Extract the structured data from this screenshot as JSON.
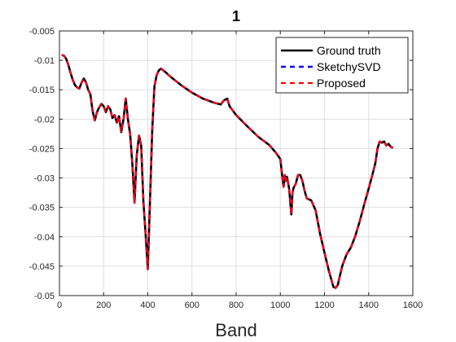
{
  "chart_data": {
    "type": "line",
    "title": "1",
    "xlabel": "Band",
    "ylabel": "",
    "xlim": [
      0,
      1600
    ],
    "ylim": [
      -0.05,
      -0.005
    ],
    "xticks": [
      0,
      200,
      400,
      600,
      800,
      1000,
      1200,
      1400,
      1600
    ],
    "yticks": [
      -0.005,
      -0.01,
      -0.015,
      -0.02,
      -0.025,
      -0.03,
      -0.035,
      -0.04,
      -0.045,
      -0.05
    ],
    "xtick_labels": [
      "0",
      "200",
      "400",
      "600",
      "800",
      "1000",
      "1200",
      "1400",
      "1600"
    ],
    "ytick_labels": [
      "-0.005",
      "-0.01",
      "-0.015",
      "-0.02",
      "-0.025",
      "-0.03",
      "-0.035",
      "-0.04",
      "-0.045",
      "-0.05"
    ],
    "grid": true,
    "legend_position": "top-right",
    "x": [
      10,
      20,
      30,
      40,
      50,
      60,
      70,
      80,
      90,
      100,
      110,
      120,
      130,
      140,
      150,
      160,
      170,
      180,
      190,
      200,
      210,
      220,
      230,
      240,
      250,
      260,
      270,
      280,
      290,
      300,
      310,
      320,
      330,
      340,
      350,
      360,
      370,
      380,
      390,
      400,
      410,
      420,
      430,
      440,
      450,
      460,
      480,
      500,
      550,
      600,
      650,
      700,
      730,
      745,
      760,
      770,
      780,
      800,
      850,
      900,
      950,
      980,
      1000,
      1010,
      1015,
      1020,
      1025,
      1030,
      1040,
      1050,
      1055,
      1060,
      1070,
      1080,
      1090,
      1100,
      1110,
      1120,
      1140,
      1160,
      1180,
      1200,
      1220,
      1240,
      1250,
      1260,
      1280,
      1300,
      1320,
      1340,
      1360,
      1380,
      1400,
      1420,
      1430,
      1440,
      1450,
      1460,
      1470,
      1480,
      1490,
      1500,
      1510
    ],
    "series": [
      {
        "name": "Ground truth",
        "color": "#000000",
        "dash": "solid",
        "values": [
          -0.0091,
          -0.0092,
          -0.0097,
          -0.0107,
          -0.0121,
          -0.0133,
          -0.0142,
          -0.0146,
          -0.0148,
          -0.0138,
          -0.0131,
          -0.0137,
          -0.015,
          -0.0158,
          -0.0186,
          -0.0202,
          -0.0188,
          -0.018,
          -0.0174,
          -0.0178,
          -0.0188,
          -0.0178,
          -0.0183,
          -0.0198,
          -0.0193,
          -0.0206,
          -0.0195,
          -0.0222,
          -0.02,
          -0.0165,
          -0.02,
          -0.0225,
          -0.0275,
          -0.0342,
          -0.0262,
          -0.0228,
          -0.0245,
          -0.034,
          -0.0395,
          -0.0455,
          -0.034,
          -0.022,
          -0.0145,
          -0.0125,
          -0.0117,
          -0.0114,
          -0.012,
          -0.0127,
          -0.0142,
          -0.0155,
          -0.0165,
          -0.0172,
          -0.0175,
          -0.0168,
          -0.0165,
          -0.0178,
          -0.0183,
          -0.0193,
          -0.0212,
          -0.023,
          -0.0244,
          -0.0257,
          -0.0268,
          -0.0302,
          -0.0315,
          -0.0295,
          -0.0305,
          -0.0298,
          -0.0318,
          -0.0362,
          -0.0325,
          -0.0317,
          -0.031,
          -0.0295,
          -0.0295,
          -0.0305,
          -0.0322,
          -0.0335,
          -0.0338,
          -0.0355,
          -0.0395,
          -0.0427,
          -0.0458,
          -0.0485,
          -0.0487,
          -0.0482,
          -0.045,
          -0.043,
          -0.0418,
          -0.0398,
          -0.0373,
          -0.0345,
          -0.0318,
          -0.029,
          -0.0275,
          -0.025,
          -0.0238,
          -0.024,
          -0.0238,
          -0.0245,
          -0.0242,
          -0.0247,
          -0.0249
        ]
      },
      {
        "name": "SketchySVD",
        "color": "#0000ff",
        "dash": "dashed",
        "values": [
          -0.0091,
          -0.0092,
          -0.0097,
          -0.0107,
          -0.0121,
          -0.0133,
          -0.0142,
          -0.0146,
          -0.0148,
          -0.0138,
          -0.0131,
          -0.0137,
          -0.015,
          -0.0158,
          -0.0186,
          -0.0202,
          -0.0188,
          -0.018,
          -0.0174,
          -0.0178,
          -0.0188,
          -0.0178,
          -0.0183,
          -0.0198,
          -0.0193,
          -0.0206,
          -0.0195,
          -0.0222,
          -0.02,
          -0.0165,
          -0.02,
          -0.0225,
          -0.0275,
          -0.0342,
          -0.0262,
          -0.0228,
          -0.0245,
          -0.034,
          -0.0395,
          -0.0455,
          -0.034,
          -0.022,
          -0.0145,
          -0.0125,
          -0.0117,
          -0.0114,
          -0.012,
          -0.0127,
          -0.0142,
          -0.0155,
          -0.0165,
          -0.0172,
          -0.0175,
          -0.0168,
          -0.0165,
          -0.0178,
          -0.0183,
          -0.0193,
          -0.0212,
          -0.023,
          -0.0244,
          -0.0257,
          -0.0268,
          -0.0302,
          -0.0315,
          -0.0295,
          -0.0305,
          -0.0298,
          -0.0318,
          -0.0362,
          -0.0325,
          -0.0317,
          -0.031,
          -0.0295,
          -0.0295,
          -0.0305,
          -0.0322,
          -0.0335,
          -0.0338,
          -0.0355,
          -0.0395,
          -0.0427,
          -0.0458,
          -0.0485,
          -0.0487,
          -0.0482,
          -0.045,
          -0.043,
          -0.0418,
          -0.0398,
          -0.0373,
          -0.0345,
          -0.0318,
          -0.029,
          -0.0275,
          -0.025,
          -0.0238,
          -0.024,
          -0.0238,
          -0.0245,
          -0.0242,
          -0.0247,
          -0.0249
        ]
      },
      {
        "name": "Proposed",
        "color": "#ff0000",
        "dash": "dashed",
        "values": [
          -0.0091,
          -0.0092,
          -0.0097,
          -0.0107,
          -0.0121,
          -0.0133,
          -0.0142,
          -0.0146,
          -0.0148,
          -0.0138,
          -0.0131,
          -0.0137,
          -0.015,
          -0.0158,
          -0.0186,
          -0.0202,
          -0.0188,
          -0.018,
          -0.0174,
          -0.0178,
          -0.0188,
          -0.0178,
          -0.0183,
          -0.0198,
          -0.0193,
          -0.0206,
          -0.0195,
          -0.0222,
          -0.02,
          -0.0165,
          -0.02,
          -0.0225,
          -0.0275,
          -0.0342,
          -0.0262,
          -0.0228,
          -0.0245,
          -0.034,
          -0.0395,
          -0.0455,
          -0.034,
          -0.022,
          -0.0145,
          -0.0125,
          -0.0117,
          -0.0114,
          -0.012,
          -0.0127,
          -0.0142,
          -0.0155,
          -0.0165,
          -0.0172,
          -0.0175,
          -0.0168,
          -0.0165,
          -0.0178,
          -0.0183,
          -0.0193,
          -0.0212,
          -0.023,
          -0.0244,
          -0.0257,
          -0.0268,
          -0.0302,
          -0.0315,
          -0.0295,
          -0.0305,
          -0.0298,
          -0.0318,
          -0.0362,
          -0.0325,
          -0.0317,
          -0.031,
          -0.0295,
          -0.0295,
          -0.0305,
          -0.0322,
          -0.0335,
          -0.0338,
          -0.0355,
          -0.0395,
          -0.0427,
          -0.0458,
          -0.0485,
          -0.0487,
          -0.0482,
          -0.045,
          -0.043,
          -0.0418,
          -0.0398,
          -0.0373,
          -0.0345,
          -0.0318,
          -0.029,
          -0.0275,
          -0.025,
          -0.0238,
          -0.024,
          -0.0238,
          -0.0245,
          -0.0242,
          -0.0247,
          -0.0249
        ]
      }
    ]
  }
}
